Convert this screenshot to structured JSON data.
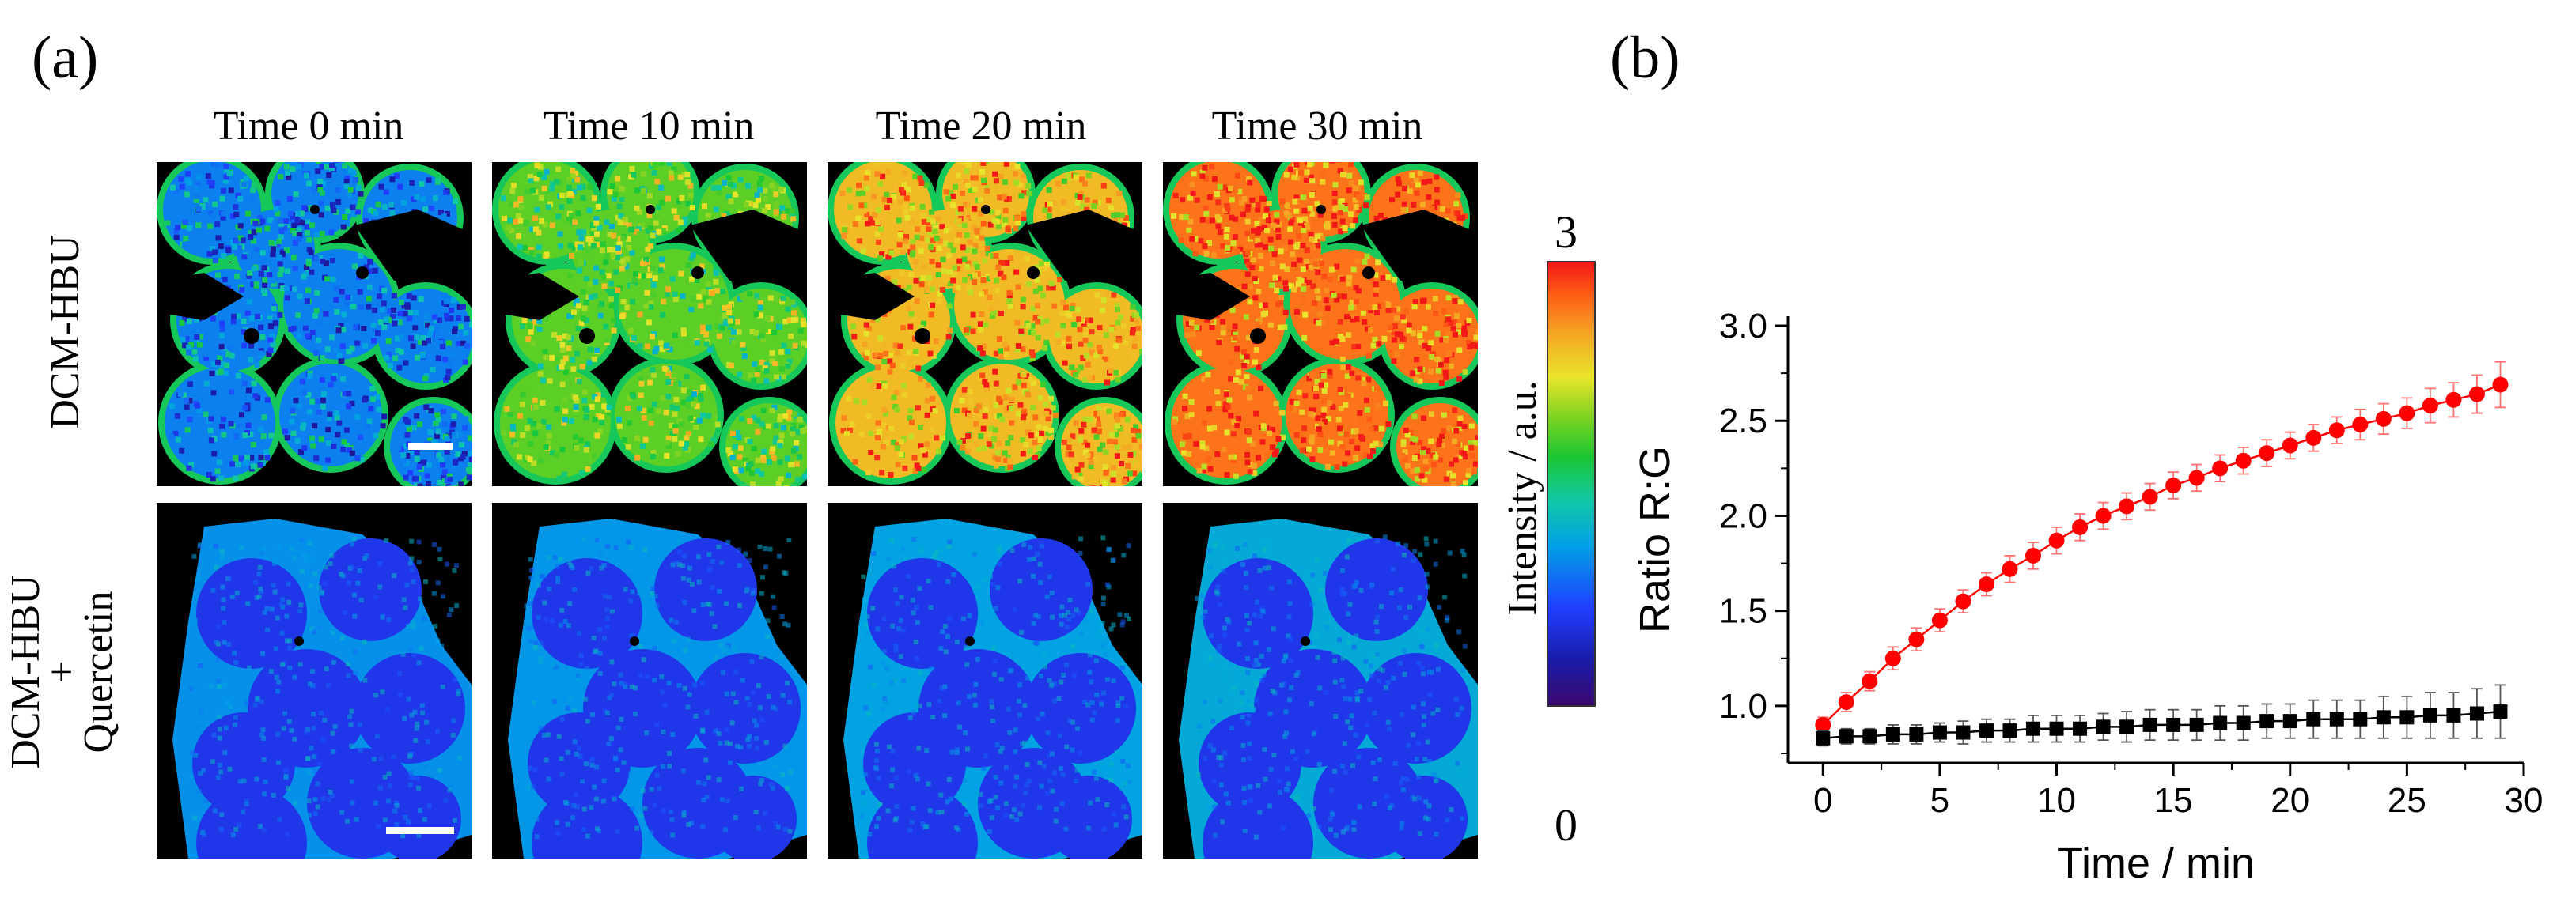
{
  "panel_a": {
    "label": "(a)",
    "columns": [
      "Time 0 min",
      "Time 10 min",
      "Time 20 min",
      "Time 30 min"
    ],
    "rows": [
      {
        "label_lines": [
          "DCM-HBU"
        ]
      },
      {
        "label_lines": [
          "DCM-HBU",
          "+",
          "Quercetin"
        ]
      }
    ],
    "colorbar": {
      "max_label": "3",
      "min_label": "0",
      "axis_label": "Intensity / a.u."
    },
    "tile_mean_intensity": [
      [
        0.9,
        1.8,
        2.4,
        2.7
      ],
      [
        0.85,
        0.87,
        0.92,
        0.97
      ]
    ]
  },
  "panel_b": {
    "label": "(b)"
  },
  "chart_data": {
    "type": "scatter",
    "xlabel": "Time / min",
    "ylabel": "Ratio R:G",
    "xlim": [
      -1.5,
      30
    ],
    "ylim": [
      0.7,
      3.05
    ],
    "xticks": [
      "0",
      "5",
      "10",
      "15",
      "20",
      "25",
      "30"
    ],
    "yticks": [
      "1.0",
      "1.5",
      "2.0",
      "2.5",
      "3.0"
    ],
    "grid": false,
    "legend": "none",
    "series": [
      {
        "color": "#ff0000",
        "marker": "circle",
        "x": [
          0,
          1,
          2,
          3,
          4,
          5,
          6,
          7,
          8,
          9,
          10,
          11,
          12,
          13,
          14,
          15,
          16,
          17,
          18,
          19,
          20,
          21,
          22,
          23,
          24,
          25,
          26,
          27,
          28,
          29
        ],
        "y": [
          0.9,
          1.02,
          1.13,
          1.25,
          1.35,
          1.45,
          1.55,
          1.64,
          1.72,
          1.79,
          1.87,
          1.94,
          2.0,
          2.05,
          2.1,
          2.16,
          2.2,
          2.25,
          2.29,
          2.33,
          2.37,
          2.41,
          2.45,
          2.48,
          2.51,
          2.54,
          2.58,
          2.61,
          2.64,
          2.69
        ],
        "err": [
          0.04,
          0.05,
          0.05,
          0.06,
          0.06,
          0.06,
          0.06,
          0.06,
          0.07,
          0.07,
          0.07,
          0.07,
          0.07,
          0.07,
          0.07,
          0.07,
          0.07,
          0.07,
          0.07,
          0.07,
          0.07,
          0.07,
          0.07,
          0.08,
          0.08,
          0.08,
          0.09,
          0.09,
          0.1,
          0.12
        ]
      },
      {
        "color": "#000000",
        "marker": "square",
        "x": [
          0,
          1,
          2,
          3,
          4,
          5,
          6,
          7,
          8,
          9,
          10,
          11,
          12,
          13,
          14,
          15,
          16,
          17,
          18,
          19,
          20,
          21,
          22,
          23,
          24,
          25,
          26,
          27,
          28,
          29
        ],
        "y": [
          0.83,
          0.84,
          0.84,
          0.85,
          0.85,
          0.86,
          0.86,
          0.87,
          0.87,
          0.88,
          0.88,
          0.88,
          0.89,
          0.89,
          0.9,
          0.9,
          0.9,
          0.91,
          0.91,
          0.92,
          0.92,
          0.93,
          0.93,
          0.93,
          0.94,
          0.94,
          0.95,
          0.95,
          0.96,
          0.97
        ],
        "err": [
          0.04,
          0.04,
          0.04,
          0.05,
          0.05,
          0.05,
          0.06,
          0.06,
          0.06,
          0.07,
          0.07,
          0.07,
          0.07,
          0.08,
          0.08,
          0.08,
          0.08,
          0.09,
          0.09,
          0.09,
          0.09,
          0.1,
          0.1,
          0.1,
          0.11,
          0.11,
          0.12,
          0.12,
          0.13,
          0.14
        ]
      }
    ]
  }
}
